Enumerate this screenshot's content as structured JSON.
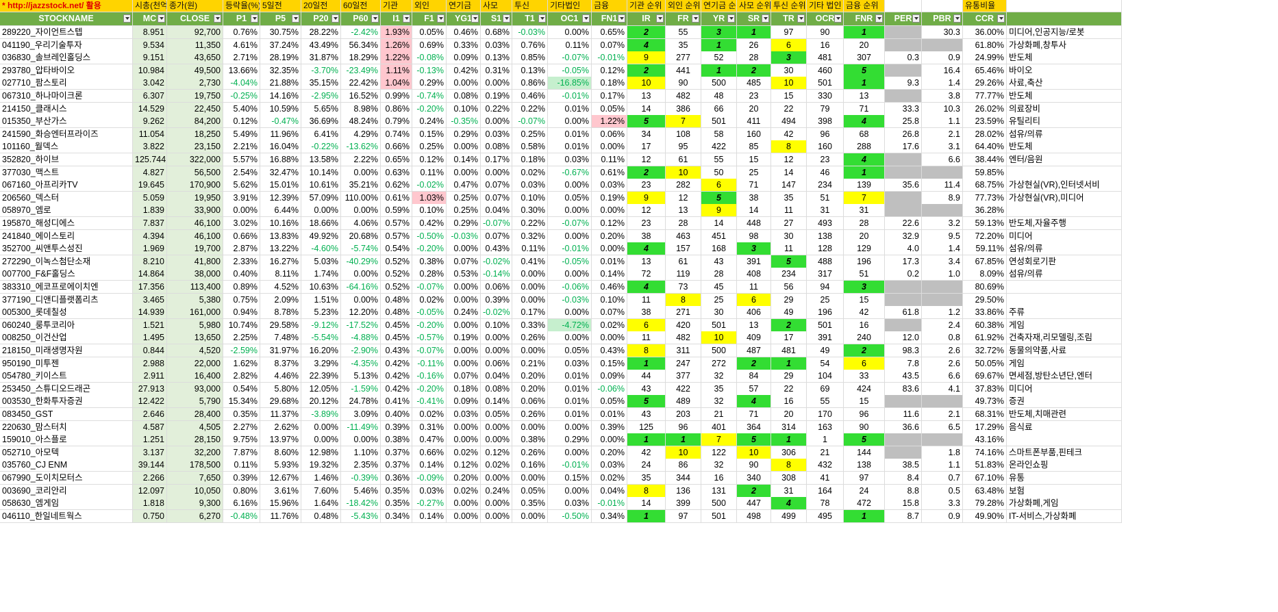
{
  "columns": [
    "STOCKNAME",
    "MC",
    "CLOSE",
    "P1",
    "P5",
    "P20",
    "P60",
    "I1",
    "F1",
    "YG1",
    "S1",
    "T1",
    "OC1",
    "FN1",
    "IR",
    "FR",
    "YR",
    "SR",
    "TR",
    "OCR",
    "FNR",
    "PER",
    "PBR",
    "CCR",
    ""
  ],
  "top_labels": [
    "* http://jazzstock.net/ 활용",
    "시총(천억)",
    "종가(원)",
    "등락율(%)",
    "5일전",
    "20일전",
    "60일전",
    "기관",
    "외인",
    "연기금",
    "사모",
    "투신",
    "기타법인",
    "금융",
    "기관 순위",
    "외인 순위",
    "연기금 순위",
    "사모 순위",
    "투신 순위",
    "기타 법인 순위",
    "금융 순위",
    "",
    "",
    "유통비율",
    ""
  ],
  "colors": {
    "header_green": "#70ad47",
    "top_yellow": "#ffd400",
    "rank_green": "#33dd33",
    "rank_yellow": "#ffff00",
    "pink": "#ffc7ce",
    "light_green": "#c6efce",
    "gray": "#bfbfbf",
    "neg_text": "#00b050"
  },
  "rows": [
    [
      "289220_자이언트스텝",
      "8.951",
      "92,700",
      "0.76%",
      "30.75%",
      "28.22%",
      "-2.42%",
      "1.93%",
      "0.05%",
      "0.46%",
      "0.68%",
      "-0.03%",
      "0.00%",
      "0.65%",
      "2",
      "55",
      "3",
      "1",
      "97",
      "90",
      "1",
      "",
      "30.3",
      "36.00%",
      "미디어,인공지능/로봇"
    ],
    [
      "041190_우리기술투자",
      "9.534",
      "11,350",
      "4.61%",
      "37.24%",
      "43.49%",
      "56.34%",
      "1.26%",
      "0.69%",
      "0.33%",
      "0.03%",
      "0.76%",
      "0.11%",
      "0.07%",
      "4",
      "35",
      "1",
      "26",
      "6",
      "16",
      "20",
      "",
      "",
      "61.80%",
      "가상화폐,창투사"
    ],
    [
      "036830_솔브레인홀딩스",
      "9.151",
      "43,650",
      "2.71%",
      "28.19%",
      "31.87%",
      "18.29%",
      "1.22%",
      "-0.08%",
      "0.09%",
      "0.13%",
      "0.85%",
      "-0.07%",
      "-0.01%",
      "9",
      "277",
      "52",
      "28",
      "3",
      "481",
      "307",
      "0.3",
      "0.9",
      "24.99%",
      "반도체"
    ],
    [
      "293780_압타바이오",
      "10.984",
      "49,500",
      "13.66%",
      "32.35%",
      "-3.70%",
      "-23.49%",
      "1.11%",
      "-0.13%",
      "0.42%",
      "0.31%",
      "0.13%",
      "-0.05%",
      "0.12%",
      "2",
      "441",
      "1",
      "2",
      "30",
      "460",
      "5",
      "",
      "16.4",
      "65.46%",
      "바이오"
    ],
    [
      "027710_팜스토리",
      "3.042",
      "2,730",
      "-4.04%",
      "21.88%",
      "35.15%",
      "22.42%",
      "1.04%",
      "0.29%",
      "0.00%",
      "0.00%",
      "0.86%",
      "-16.85%",
      "0.18%",
      "10",
      "90",
      "500",
      "485",
      "10",
      "501",
      "1",
      "9.3",
      "1.4",
      "29.26%",
      "사료,축산"
    ],
    [
      "067310_하나마이크론",
      "6.307",
      "19,750",
      "-0.25%",
      "14.16%",
      "-2.95%",
      "16.52%",
      "0.99%",
      "-0.74%",
      "0.08%",
      "0.19%",
      "0.46%",
      "-0.01%",
      "0.17%",
      "13",
      "482",
      "48",
      "23",
      "15",
      "330",
      "13",
      "",
      "3.8",
      "77.77%",
      "반도체"
    ],
    [
      "214150_클래시스",
      "14.529",
      "22,450",
      "5.40%",
      "10.59%",
      "5.65%",
      "8.98%",
      "0.86%",
      "-0.20%",
      "0.10%",
      "0.22%",
      "0.22%",
      "0.01%",
      "0.05%",
      "14",
      "386",
      "66",
      "20",
      "22",
      "79",
      "71",
      "33.3",
      "10.3",
      "26.02%",
      "의료장비"
    ],
    [
      "015350_부산가스",
      "9.262",
      "84,200",
      "0.12%",
      "-0.47%",
      "36.69%",
      "48.24%",
      "0.79%",
      "0.24%",
      "-0.35%",
      "0.00%",
      "-0.07%",
      "0.00%",
      "1.22%",
      "5",
      "7",
      "501",
      "411",
      "494",
      "398",
      "4",
      "25.8",
      "1.1",
      "23.59%",
      "유틸리티"
    ],
    [
      "241590_화승엔터프라이즈",
      "11.054",
      "18,250",
      "5.49%",
      "11.96%",
      "6.41%",
      "4.29%",
      "0.74%",
      "0.15%",
      "0.29%",
      "0.03%",
      "0.25%",
      "0.01%",
      "0.06%",
      "34",
      "108",
      "58",
      "160",
      "42",
      "96",
      "68",
      "26.8",
      "2.1",
      "28.02%",
      "섬유/의류"
    ],
    [
      "101160_월덱스",
      "3.822",
      "23,150",
      "2.21%",
      "16.04%",
      "-0.22%",
      "-13.62%",
      "0.66%",
      "0.25%",
      "0.00%",
      "0.08%",
      "0.58%",
      "0.01%",
      "0.00%",
      "17",
      "95",
      "422",
      "85",
      "8",
      "160",
      "288",
      "17.6",
      "3.1",
      "64.40%",
      "반도체"
    ],
    [
      "352820_하이브",
      "125.744",
      "322,000",
      "5.57%",
      "16.88%",
      "13.58%",
      "2.22%",
      "0.65%",
      "0.12%",
      "0.14%",
      "0.17%",
      "0.18%",
      "0.03%",
      "0.11%",
      "12",
      "61",
      "55",
      "15",
      "12",
      "23",
      "4",
      "",
      "6.6",
      "38.44%",
      "엔터/음원"
    ],
    [
      "377030_맥스트",
      "4.827",
      "56,500",
      "2.54%",
      "32.47%",
      "10.14%",
      "0.00%",
      "0.63%",
      "0.11%",
      "0.00%",
      "0.00%",
      "0.02%",
      "-0.67%",
      "0.61%",
      "2",
      "10",
      "50",
      "25",
      "14",
      "46",
      "1",
      "",
      "",
      "59.85%",
      ""
    ],
    [
      "067160_아프리카TV",
      "19.645",
      "170,900",
      "5.62%",
      "15.01%",
      "10.61%",
      "35.21%",
      "0.62%",
      "-0.02%",
      "0.47%",
      "0.07%",
      "0.03%",
      "0.00%",
      "0.03%",
      "23",
      "282",
      "6",
      "71",
      "147",
      "234",
      "139",
      "35.6",
      "11.4",
      "68.75%",
      "가상현실(VR),인터넷서비"
    ],
    [
      "206560_덱스터",
      "5.059",
      "19,950",
      "3.91%",
      "12.39%",
      "57.09%",
      "110.00%",
      "0.61%",
      "1.03%",
      "0.25%",
      "0.07%",
      "0.10%",
      "0.05%",
      "0.19%",
      "9",
      "12",
      "5",
      "38",
      "35",
      "51",
      "7",
      "",
      "8.9",
      "77.73%",
      "가상현실(VR),미디어"
    ],
    [
      "058970_엠로",
      "1.839",
      "33,900",
      "0.00%",
      "6.44%",
      "0.00%",
      "0.00%",
      "0.59%",
      "0.10%",
      "0.25%",
      "0.04%",
      "0.30%",
      "0.00%",
      "0.00%",
      "12",
      "13",
      "9",
      "14",
      "11",
      "31",
      "31",
      "",
      "",
      "36.28%",
      ""
    ],
    [
      "195870_해성디에스",
      "7.837",
      "46,100",
      "3.02%",
      "10.16%",
      "18.66%",
      "4.06%",
      "0.57%",
      "0.42%",
      "0.29%",
      "-0.07%",
      "0.22%",
      "-0.07%",
      "0.12%",
      "23",
      "28",
      "14",
      "448",
      "27",
      "493",
      "28",
      "22.6",
      "3.2",
      "59.13%",
      "반도체,자율주행"
    ],
    [
      "241840_에이스토리",
      "4.394",
      "46,100",
      "0.66%",
      "13.83%",
      "49.92%",
      "20.68%",
      "0.57%",
      "-0.50%",
      "-0.03%",
      "0.07%",
      "0.32%",
      "0.00%",
      "0.20%",
      "38",
      "463",
      "451",
      "98",
      "30",
      "138",
      "20",
      "32.9",
      "9.5",
      "72.20%",
      "미디어"
    ],
    [
      "352700_씨앤투스성진",
      "1.969",
      "19,700",
      "2.87%",
      "13.22%",
      "-4.60%",
      "-5.74%",
      "0.54%",
      "-0.20%",
      "0.00%",
      "0.43%",
      "0.11%",
      "-0.01%",
      "0.00%",
      "4",
      "157",
      "168",
      "3",
      "11",
      "128",
      "129",
      "4.0",
      "1.4",
      "59.11%",
      "섬유/의류"
    ],
    [
      "272290_이녹스첨단소재",
      "8.210",
      "41,800",
      "2.33%",
      "16.27%",
      "5.03%",
      "-40.29%",
      "0.52%",
      "0.38%",
      "0.07%",
      "-0.02%",
      "0.41%",
      "-0.05%",
      "0.01%",
      "13",
      "61",
      "43",
      "391",
      "5",
      "488",
      "196",
      "17.3",
      "3.4",
      "67.85%",
      "연성회로기판"
    ],
    [
      "007700_F&F홀딩스",
      "14.864",
      "38,000",
      "0.40%",
      "8.11%",
      "1.74%",
      "0.00%",
      "0.52%",
      "0.28%",
      "0.53%",
      "-0.14%",
      "0.00%",
      "0.00%",
      "0.14%",
      "72",
      "119",
      "28",
      "408",
      "234",
      "317",
      "51",
      "0.2",
      "1.0",
      "8.09%",
      "섬유/의류"
    ],
    [
      "383310_에코프로에이치엔",
      "17.356",
      "113,400",
      "0.89%",
      "4.52%",
      "10.63%",
      "-64.16%",
      "0.52%",
      "-0.07%",
      "0.00%",
      "0.06%",
      "0.00%",
      "-0.06%",
      "0.46%",
      "4",
      "73",
      "45",
      "11",
      "56",
      "94",
      "3",
      "",
      "",
      "80.69%",
      ""
    ],
    [
      "377190_디앤디플랫폼리츠",
      "3.465",
      "5,380",
      "0.75%",
      "2.09%",
      "1.51%",
      "0.00%",
      "0.48%",
      "0.02%",
      "0.00%",
      "0.39%",
      "0.00%",
      "-0.03%",
      "0.10%",
      "11",
      "8",
      "25",
      "6",
      "29",
      "25",
      "15",
      "",
      "",
      "29.50%",
      ""
    ],
    [
      "005300_롯데칠성",
      "14.939",
      "161,000",
      "0.94%",
      "8.78%",
      "5.23%",
      "12.20%",
      "0.48%",
      "-0.05%",
      "0.24%",
      "-0.02%",
      "0.17%",
      "0.00%",
      "0.07%",
      "38",
      "271",
      "30",
      "406",
      "49",
      "196",
      "42",
      "61.8",
      "1.2",
      "33.86%",
      "주류"
    ],
    [
      "060240_룽투코리아",
      "1.521",
      "5,980",
      "10.74%",
      "29.58%",
      "-9.12%",
      "-17.52%",
      "0.45%",
      "-0.20%",
      "0.00%",
      "0.10%",
      "0.33%",
      "-4.72%",
      "0.02%",
      "6",
      "420",
      "501",
      "13",
      "2",
      "501",
      "16",
      "",
      "2.4",
      "60.38%",
      "게임"
    ],
    [
      "008250_이건산업",
      "1.495",
      "13,650",
      "2.25%",
      "7.48%",
      "-5.54%",
      "-4.88%",
      "0.45%",
      "-0.57%",
      "0.19%",
      "0.00%",
      "0.26%",
      "0.00%",
      "0.00%",
      "11",
      "482",
      "10",
      "409",
      "17",
      "391",
      "240",
      "12.0",
      "0.8",
      "61.92%",
      "건축자재,리모델링,조림"
    ],
    [
      "218150_미래생명자원",
      "0.844",
      "4,520",
      "-2.59%",
      "31.97%",
      "16.20%",
      "-2.90%",
      "0.43%",
      "-0.07%",
      "0.00%",
      "0.00%",
      "0.00%",
      "0.05%",
      "0.43%",
      "8",
      "311",
      "500",
      "487",
      "481",
      "49",
      "2",
      "98.3",
      "2.6",
      "32.72%",
      "동물의약품,사료"
    ],
    [
      "950190_미투젠",
      "2.988",
      "22,000",
      "1.62%",
      "8.37%",
      "3.29%",
      "-4.35%",
      "0.42%",
      "-0.11%",
      "0.00%",
      "0.06%",
      "0.21%",
      "0.03%",
      "0.15%",
      "1",
      "247",
      "272",
      "2",
      "1",
      "54",
      "6",
      "7.8",
      "2.6",
      "50.05%",
      "게임"
    ],
    [
      "054780_키이스트",
      "2.911",
      "16,400",
      "2.82%",
      "4.46%",
      "22.39%",
      "5.13%",
      "0.42%",
      "-0.16%",
      "0.07%",
      "0.04%",
      "0.20%",
      "0.01%",
      "0.09%",
      "44",
      "377",
      "32",
      "84",
      "29",
      "104",
      "33",
      "43.5",
      "6.6",
      "69.67%",
      "면세점,방탄소년단,엔터"
    ],
    [
      "253450_스튜디오드래곤",
      "27.913",
      "93,000",
      "0.54%",
      "5.80%",
      "12.05%",
      "-1.59%",
      "0.42%",
      "-0.20%",
      "0.18%",
      "0.08%",
      "0.20%",
      "0.01%",
      "-0.06%",
      "43",
      "422",
      "35",
      "57",
      "22",
      "69",
      "424",
      "83.6",
      "4.1",
      "37.83%",
      "미디어"
    ],
    [
      "003530_한화투자증권",
      "12.422",
      "5,790",
      "15.34%",
      "29.68%",
      "20.12%",
      "24.78%",
      "0.41%",
      "-0.41%",
      "0.09%",
      "0.14%",
      "0.06%",
      "0.01%",
      "0.05%",
      "5",
      "489",
      "32",
      "4",
      "16",
      "55",
      "15",
      "",
      "",
      "49.73%",
      "증권"
    ],
    [
      "083450_GST",
      "2.646",
      "28,400",
      "0.35%",
      "11.37%",
      "-3.89%",
      "3.09%",
      "0.40%",
      "0.02%",
      "0.03%",
      "0.05%",
      "0.26%",
      "0.01%",
      "0.01%",
      "43",
      "203",
      "21",
      "71",
      "20",
      "170",
      "96",
      "11.6",
      "2.1",
      "68.31%",
      "반도체,치매관련"
    ],
    [
      "220630_맘스터치",
      "4.587",
      "4,505",
      "2.27%",
      "2.62%",
      "0.00%",
      "-11.49%",
      "0.39%",
      "0.31%",
      "0.00%",
      "0.00%",
      "0.00%",
      "0.00%",
      "0.39%",
      "125",
      "96",
      "401",
      "364",
      "314",
      "163",
      "90",
      "36.6",
      "6.5",
      "17.29%",
      "음식료"
    ],
    [
      "159010_아스플로",
      "1.251",
      "28,150",
      "9.75%",
      "13.97%",
      "0.00%",
      "0.00%",
      "0.38%",
      "0.47%",
      "0.00%",
      "0.00%",
      "0.38%",
      "0.29%",
      "0.00%",
      "1",
      "1",
      "7",
      "5",
      "1",
      "1",
      "5",
      "",
      "",
      "43.16%",
      ""
    ],
    [
      "052710_아모텍",
      "3.137",
      "32,200",
      "7.87%",
      "8.60%",
      "12.98%",
      "1.10%",
      "0.37%",
      "0.66%",
      "0.02%",
      "0.12%",
      "0.26%",
      "0.00%",
      "0.20%",
      "42",
      "10",
      "122",
      "10",
      "306",
      "21",
      "144",
      "",
      "1.8",
      "74.16%",
      "스마트폰부품,핀테크"
    ],
    [
      "035760_CJ ENM",
      "39.144",
      "178,500",
      "0.11%",
      "5.93%",
      "19.32%",
      "2.35%",
      "0.37%",
      "0.14%",
      "0.12%",
      "0.02%",
      "0.16%",
      "-0.01%",
      "0.03%",
      "24",
      "86",
      "32",
      "90",
      "8",
      "432",
      "138",
      "38.5",
      "1.1",
      "51.83%",
      "온라인쇼핑"
    ],
    [
      "067990_도이치모터스",
      "2.266",
      "7,650",
      "0.39%",
      "12.67%",
      "1.46%",
      "-0.39%",
      "0.36%",
      "-0.09%",
      "0.20%",
      "0.00%",
      "0.00%",
      "0.15%",
      "0.02%",
      "35",
      "344",
      "16",
      "340",
      "308",
      "41",
      "97",
      "8.4",
      "0.7",
      "67.10%",
      "유통"
    ],
    [
      "003690_코리안리",
      "12.097",
      "10,050",
      "0.80%",
      "3.61%",
      "7.60%",
      "5.46%",
      "0.35%",
      "0.03%",
      "0.02%",
      "0.24%",
      "0.05%",
      "0.00%",
      "0.04%",
      "8",
      "136",
      "131",
      "2",
      "31",
      "164",
      "24",
      "8.8",
      "0.5",
      "63.48%",
      "보험"
    ],
    [
      "058630_엠게임",
      "1.818",
      "9,300",
      "6.16%",
      "15.96%",
      "1.64%",
      "-18.42%",
      "0.35%",
      "-0.27%",
      "0.00%",
      "0.00%",
      "0.35%",
      "0.03%",
      "-0.01%",
      "14",
      "399",
      "500",
      "447",
      "4",
      "78",
      "472",
      "15.8",
      "3.3",
      "79.28%",
      "가상화폐,게임"
    ],
    [
      "046110_한일네트웍스",
      "0.750",
      "6,270",
      "-0.48%",
      "11.76%",
      "0.48%",
      "-5.43%",
      "0.34%",
      "0.14%",
      "0.00%",
      "0.00%",
      "0.00%",
      "-0.50%",
      "0.34%",
      "1",
      "97",
      "501",
      "498",
      "499",
      "495",
      "1",
      "8.7",
      "0.9",
      "49.90%",
      "IT-서비스,가상화폐"
    ]
  ]
}
